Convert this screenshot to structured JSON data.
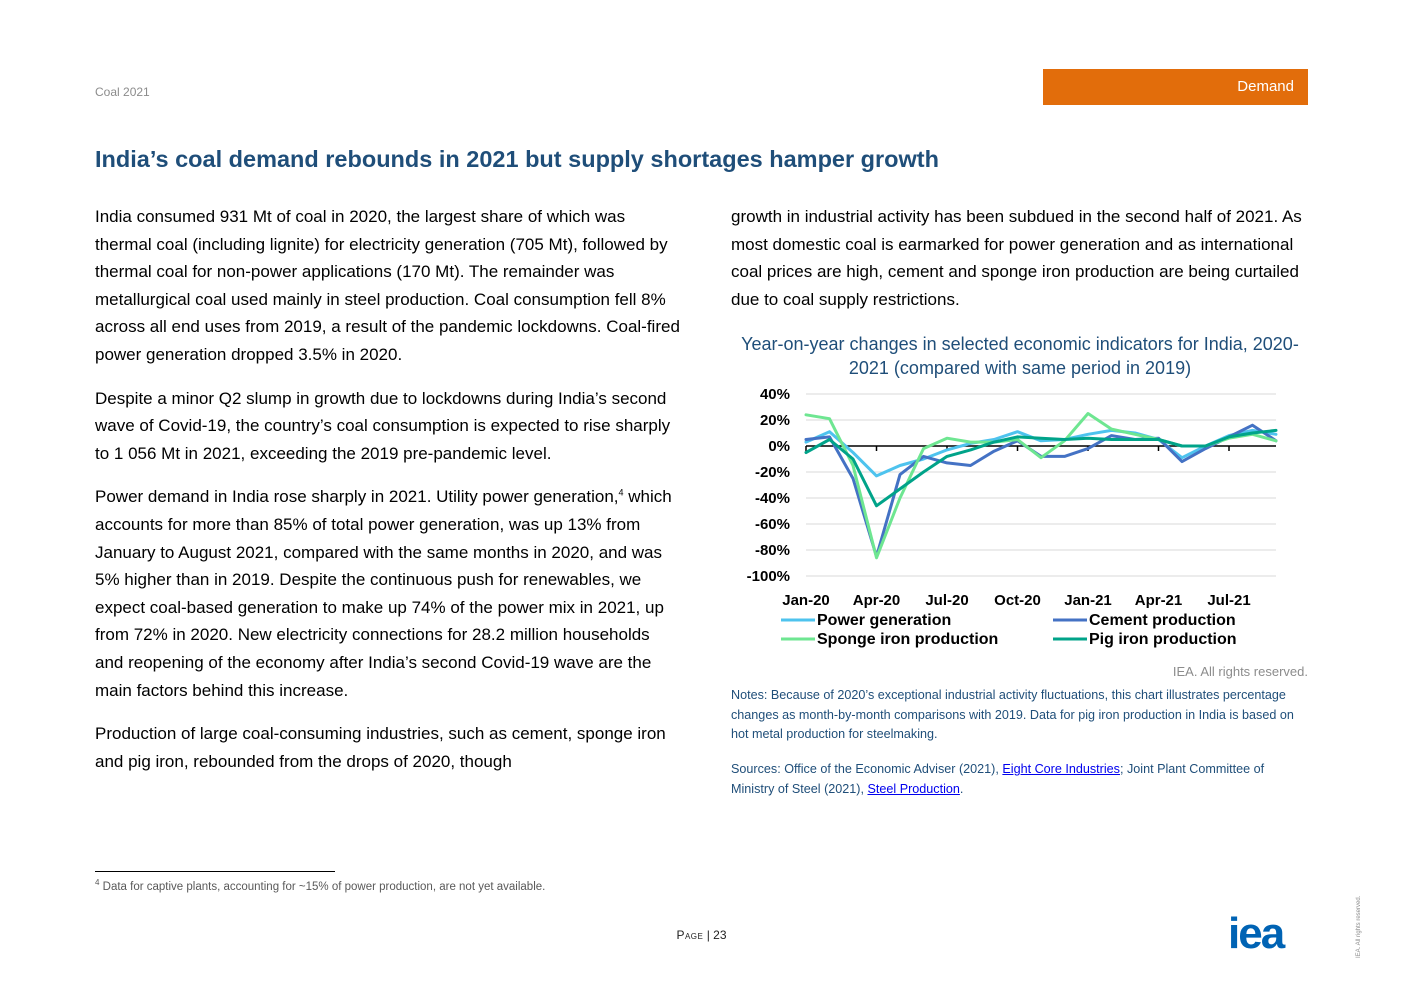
{
  "header": {
    "report_name": "Coal 2021",
    "section": "Demand"
  },
  "title": "India’s coal demand rebounds in 2021 but supply shortages hamper growth",
  "body": {
    "p1": "India consumed 931 Mt of coal in 2020, the largest share of which was thermal coal (including lignite) for electricity generation (705 Mt), followed by thermal coal for non-power applications (170 Mt). The remainder was metallurgical coal used mainly in steel production. Coal consumption fell 8% across all end uses from 2019, a result of the pandemic lockdowns. Coal-fired power generation dropped 3.5% in 2020.",
    "p2": "Despite a minor Q2 slump in growth due to lockdowns during India’s second wave of Covid-19, the country’s coal consumption is expected to rise sharply to 1 056 Mt in 2021, exceeding the 2019 pre-pandemic level.",
    "p3_a": "Power demand in India rose sharply in 2021. Utility power generation,",
    "p3_sup": "4",
    "p3_b": " which accounts for more than 85% of total power generation, was up 13% from January to August 2021, compared with the same months in 2020, and was 5% higher than in 2019. Despite the continuous push for renewables, we expect coal-based generation to make up 74% of the power mix in 2021, up from 72% in 2020. New electricity connections for 28.2 million households and reopening of the economy after India’s second Covid-19 wave are the main factors behind this increase.",
    "p4": "Production of large coal-consuming industries, such as cement, sponge iron and pig iron, rebounded from the drops of 2020, though",
    "p5": "growth in industrial activity has been subdued in the second half of 2021. As most domestic coal is earmarked for power generation and as international coal prices are high, cement and sponge iron production are being curtailed due to coal supply restrictions."
  },
  "chart_data": {
    "type": "line",
    "title": "Year-on-year changes in selected economic indicators for India, 2020-2021 (compared with same period in 2019)",
    "x": [
      "Jan-20",
      "Feb-20",
      "Mar-20",
      "Apr-20",
      "May-20",
      "Jun-20",
      "Jul-20",
      "Aug-20",
      "Sep-20",
      "Oct-20",
      "Nov-20",
      "Dec-20",
      "Jan-21",
      "Feb-21",
      "Mar-21",
      "Apr-21",
      "May-21",
      "Jun-21",
      "Jul-21",
      "Aug-21",
      "Sep-21"
    ],
    "x_tick_labels": [
      "Jan-20",
      "Apr-20",
      "Jul-20",
      "Oct-20",
      "Jan-21",
      "Apr-21",
      "Jul-21"
    ],
    "y_tick_labels": [
      "40%",
      "20%",
      "0%",
      "-20%",
      "-40%",
      "-60%",
      "-80%",
      "-100%"
    ],
    "ylim": [
      -100,
      40
    ],
    "y_unit": "%",
    "grid": true,
    "legend_position": "bottom",
    "series": [
      {
        "name": "Power generation",
        "color": "#4ec3ee",
        "values": [
          3,
          11,
          -5,
          -23,
          -15,
          -10,
          -3,
          2,
          5,
          11,
          4,
          5,
          9,
          12,
          10,
          5,
          -9,
          0,
          8,
          12,
          9
        ]
      },
      {
        "name": "Cement production",
        "color": "#4472c4",
        "values": [
          5,
          7,
          -25,
          -85,
          -22,
          -8,
          -13,
          -15,
          -4,
          4,
          -8,
          -8,
          -2,
          8,
          5,
          6,
          -12,
          -2,
          7,
          16,
          4
        ]
      },
      {
        "name": "Sponge iron production",
        "color": "#6ee691",
        "values": [
          24,
          21,
          -15,
          -86,
          -40,
          -2,
          6,
          3,
          3,
          5,
          -9,
          4,
          25,
          13,
          9,
          5,
          0,
          0,
          6,
          9,
          4
        ]
      },
      {
        "name": "Pig iron production",
        "color": "#00a389",
        "values": [
          -5,
          5,
          -10,
          -46,
          -33,
          -20,
          -8,
          -3,
          3,
          7,
          6,
          5,
          6,
          5,
          5,
          5,
          0,
          0,
          7,
          10,
          12
        ]
      }
    ]
  },
  "copyright": "IEA. All rights reserved.",
  "notes": "Notes: Because of 2020’s exceptional industrial activity fluctuations, this chart illustrates percentage changes as month-by-month comparisons with 2019. Data for pig iron production in India is based on hot metal production for steelmaking.",
  "sources": {
    "prefix": "Sources: Office of the Economic Adviser (2021), ",
    "link1": "Eight Core Industries",
    "middle": "; Joint Plant Committee of Ministry of Steel (2021), ",
    "link2": "Steel Production",
    "suffix": "."
  },
  "footnote": {
    "number": "4",
    "text": " Data for captive plants, accounting for ~15% of power production, are not yet available."
  },
  "footer": {
    "page_word": "Page",
    "separator": " | ",
    "page_number": "23",
    "logo_text": "iea",
    "rights": "IEA. All rights reserved."
  }
}
